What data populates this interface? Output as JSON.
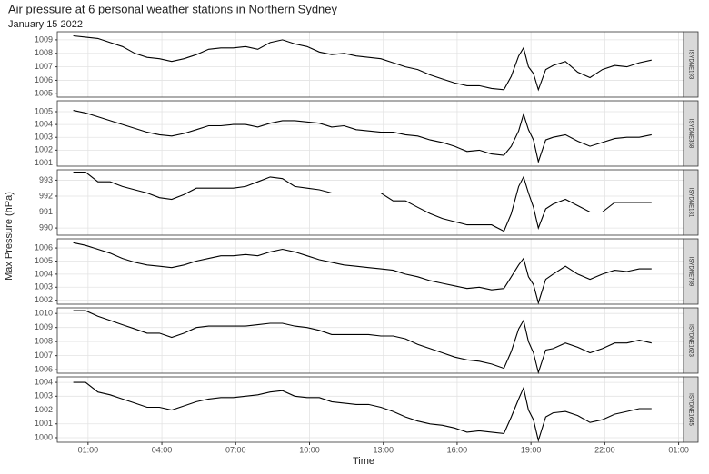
{
  "chart_data": {
    "type": "line",
    "title": "Air pressure at 6 personal weather stations in Northern Sydney",
    "subtitle": "January 15 2022",
    "x_label": "Time",
    "y_label": "Max Pressure (hPa)",
    "grid": true,
    "color": "#000000",
    "xlim": [
      -0.25,
      25.2
    ],
    "xticks": [
      {
        "value": 1,
        "label": "01:00"
      },
      {
        "value": 4,
        "label": "04:00"
      },
      {
        "value": 7,
        "label": "07:00"
      },
      {
        "value": 10,
        "label": "10:00"
      },
      {
        "value": 13,
        "label": "13:00"
      },
      {
        "value": 16,
        "label": "16:00"
      },
      {
        "value": 19,
        "label": "19:00"
      },
      {
        "value": 22,
        "label": "22:00"
      },
      {
        "value": 25,
        "label": "01:00"
      }
    ],
    "x": [
      0.4,
      0.9,
      1.4,
      1.9,
      2.4,
      2.9,
      3.4,
      3.9,
      4.4,
      4.9,
      5.4,
      5.9,
      6.4,
      6.9,
      7.4,
      7.9,
      8.4,
      8.9,
      9.4,
      9.9,
      10.4,
      10.9,
      11.4,
      11.9,
      12.4,
      12.9,
      13.4,
      13.9,
      14.4,
      14.9,
      15.4,
      15.9,
      16.4,
      16.9,
      17.4,
      17.9,
      18.2,
      18.5,
      18.7,
      18.9,
      19.1,
      19.3,
      19.6,
      19.9,
      20.4,
      20.9,
      21.4,
      21.9,
      22.4,
      22.9,
      23.4,
      23.9
    ],
    "facets": [
      {
        "name": "ISYDNE193",
        "ylim": [
          1004.75,
          1009.6
        ],
        "yticks": [
          1005,
          1006,
          1007,
          1008,
          1009
        ],
        "values": [
          1009.3,
          1009.2,
          1009.1,
          1008.8,
          1008.5,
          1008.0,
          1007.7,
          1007.6,
          1007.4,
          1007.6,
          1007.9,
          1008.3,
          1008.4,
          1008.4,
          1008.5,
          1008.3,
          1008.8,
          1009.0,
          1008.7,
          1008.5,
          1008.1,
          1007.9,
          1008.0,
          1007.8,
          1007.7,
          1007.6,
          1007.3,
          1007.0,
          1006.8,
          1006.4,
          1006.1,
          1005.8,
          1005.6,
          1005.6,
          1005.4,
          1005.3,
          1006.3,
          1007.8,
          1008.4,
          1007.0,
          1006.5,
          1005.3,
          1006.8,
          1007.1,
          1007.4,
          1006.6,
          1006.2,
          1006.8,
          1007.1,
          1007.0,
          1007.3,
          1007.5
        ]
      },
      {
        "name": "ISYDNE358",
        "ylim": [
          1000.75,
          1005.85
        ],
        "yticks": [
          1001,
          1002,
          1003,
          1004,
          1005
        ],
        "values": [
          1005.1,
          1004.9,
          1004.6,
          1004.3,
          1004.0,
          1003.7,
          1003.4,
          1003.2,
          1003.1,
          1003.3,
          1003.6,
          1003.9,
          1003.9,
          1004.0,
          1004.0,
          1003.8,
          1004.1,
          1004.3,
          1004.3,
          1004.2,
          1004.1,
          1003.8,
          1003.9,
          1003.6,
          1003.5,
          1003.4,
          1003.4,
          1003.2,
          1003.1,
          1002.8,
          1002.6,
          1002.3,
          1001.9,
          1002.0,
          1001.7,
          1001.6,
          1002.3,
          1003.5,
          1004.8,
          1003.6,
          1002.8,
          1001.1,
          1002.8,
          1003.0,
          1003.2,
          1002.7,
          1002.3,
          1002.6,
          1002.9,
          1003.0,
          1003.0,
          1003.2
        ]
      },
      {
        "name": "ISYDNE181",
        "ylim": [
          989.55,
          993.65
        ],
        "yticks": [
          990,
          991,
          992,
          993
        ],
        "values": [
          993.5,
          993.5,
          992.9,
          992.9,
          992.6,
          992.4,
          992.2,
          991.9,
          991.8,
          992.1,
          992.5,
          992.5,
          992.5,
          992.5,
          992.6,
          992.9,
          993.2,
          993.1,
          992.6,
          992.5,
          992.4,
          992.2,
          992.2,
          992.2,
          992.2,
          992.2,
          991.7,
          991.7,
          991.3,
          990.9,
          990.6,
          990.4,
          990.2,
          990.2,
          990.2,
          989.8,
          990.9,
          992.6,
          993.2,
          992.2,
          991.3,
          990.0,
          991.2,
          991.5,
          991.8,
          991.4,
          991.0,
          991.0,
          991.6,
          991.6,
          991.6,
          991.6
        ]
      },
      {
        "name": "ISYDNE739",
        "ylim": [
          1001.7,
          1006.7
        ],
        "yticks": [
          1002,
          1003,
          1004,
          1005,
          1006
        ],
        "values": [
          1006.4,
          1006.2,
          1005.9,
          1005.6,
          1005.2,
          1004.9,
          1004.7,
          1004.6,
          1004.5,
          1004.7,
          1005.0,
          1005.2,
          1005.4,
          1005.4,
          1005.5,
          1005.4,
          1005.7,
          1005.9,
          1005.7,
          1005.4,
          1005.1,
          1004.9,
          1004.7,
          1004.6,
          1004.5,
          1004.4,
          1004.3,
          1004.0,
          1003.8,
          1003.5,
          1003.3,
          1003.1,
          1002.9,
          1003.0,
          1002.8,
          1002.9,
          1003.8,
          1004.7,
          1005.2,
          1003.8,
          1003.2,
          1001.8,
          1003.6,
          1004.0,
          1004.6,
          1004.0,
          1003.6,
          1004.0,
          1004.3,
          1004.2,
          1004.4,
          1004.4
        ]
      },
      {
        "name": "ISYDNE1623",
        "ylim": [
          1005.75,
          1010.4
        ],
        "yticks": [
          1006,
          1007,
          1008,
          1009,
          1010
        ],
        "values": [
          1010.2,
          1010.2,
          1009.8,
          1009.5,
          1009.2,
          1008.9,
          1008.6,
          1008.6,
          1008.3,
          1008.6,
          1009.0,
          1009.1,
          1009.1,
          1009.1,
          1009.1,
          1009.2,
          1009.3,
          1009.3,
          1009.1,
          1009.0,
          1008.8,
          1008.5,
          1008.5,
          1008.5,
          1008.5,
          1008.4,
          1008.4,
          1008.2,
          1007.8,
          1007.5,
          1007.2,
          1006.9,
          1006.7,
          1006.6,
          1006.4,
          1006.1,
          1007.3,
          1008.9,
          1009.5,
          1008.0,
          1007.2,
          1005.8,
          1007.4,
          1007.5,
          1007.9,
          1007.6,
          1007.2,
          1007.5,
          1007.9,
          1007.9,
          1008.1,
          1007.9
        ]
      },
      {
        "name": "ISYDNE1645",
        "ylim": [
          999.67,
          1004.4
        ],
        "yticks": [
          1000,
          1001,
          1002,
          1003,
          1004
        ],
        "values": [
          1004.0,
          1004.0,
          1003.3,
          1003.1,
          1002.8,
          1002.5,
          1002.2,
          1002.2,
          1002.0,
          1002.3,
          1002.6,
          1002.8,
          1002.9,
          1002.9,
          1003.0,
          1003.1,
          1003.3,
          1003.4,
          1003.0,
          1002.9,
          1002.9,
          1002.6,
          1002.5,
          1002.4,
          1002.4,
          1002.2,
          1001.9,
          1001.5,
          1001.2,
          1001.0,
          1000.9,
          1000.7,
          1000.4,
          1000.5,
          1000.4,
          1000.3,
          1001.5,
          1002.8,
          1003.6,
          1002.0,
          1001.3,
          999.8,
          1001.5,
          1001.8,
          1001.9,
          1001.6,
          1001.1,
          1001.3,
          1001.7,
          1001.9,
          1002.1,
          1002.1
        ]
      }
    ]
  }
}
